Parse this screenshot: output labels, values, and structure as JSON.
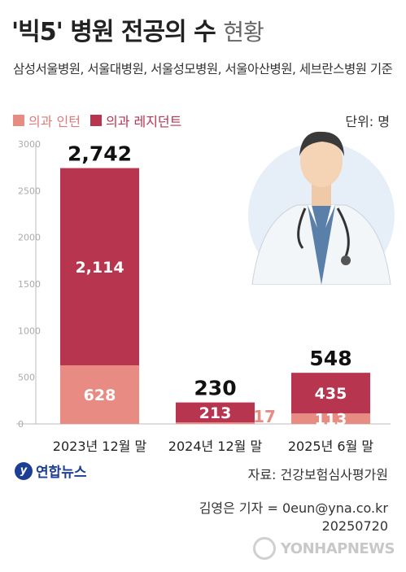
{
  "title": {
    "main": "'빅5' 병원 전공의 수",
    "sub": "현황"
  },
  "subtitle": "삼성서울병원, 서울대병원, 서울성모병원, 서울아산병원, 세브란스병원 기준",
  "unit": "단위: 명",
  "colors": {
    "intern": "#e78b83",
    "resident": "#b8354f",
    "axis": "#bbbbbb",
    "tick": "#aaaaaa"
  },
  "chart_data": {
    "type": "bar",
    "stacked": true,
    "categories": [
      "2023년 12월 말",
      "2024년 12월 말",
      "2025년 6월 말"
    ],
    "series": [
      {
        "name": "의과 인턴",
        "values": [
          628,
          17,
          113
        ]
      },
      {
        "name": "의과 레지던트",
        "values": [
          2114,
          213,
          435
        ]
      }
    ],
    "totals": [
      2742,
      230,
      548
    ],
    "value_labels": {
      "intern": [
        "628",
        "17",
        "113"
      ],
      "resident": [
        "2,114",
        "213",
        "435"
      ],
      "totals": [
        "2,742",
        "230",
        "548"
      ]
    },
    "yticks": [
      0,
      500,
      1000,
      1500,
      2000,
      2500,
      3000
    ],
    "ytick_labels": [
      "0",
      "500",
      "1000",
      "1500",
      "2000",
      "2500",
      "3000"
    ],
    "ylim": [
      0,
      3000
    ],
    "grid": false,
    "legend": "top-left"
  },
  "logo_text": "연합뉴스",
  "source": "자료: 건강보험심사평가원",
  "credit": {
    "reporter": "김영은 기자 = 0eun@yna.co.kr",
    "date": "20250720"
  },
  "watermark": "YONHAPNEWS",
  "icons": {
    "illustration": "doctor-illustration",
    "logo": "yonhap-globe-icon"
  }
}
